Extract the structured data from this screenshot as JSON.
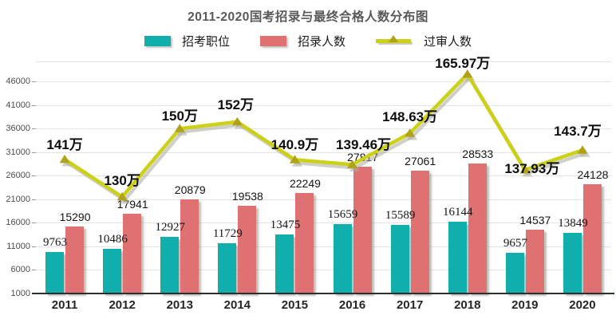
{
  "title": "2011-2020国考招录与最终合格人数分布图",
  "legend": [
    {
      "label": "招考职位",
      "type": "bar",
      "color": "#10afac"
    },
    {
      "label": "招录人数",
      "type": "bar",
      "color": "#df7173"
    },
    {
      "label": "过审人数",
      "type": "line",
      "color": "#ccd117"
    }
  ],
  "chart_data": {
    "type": "bar+line",
    "title": "2011-2020国考招录与最终合格人数分布图",
    "categories": [
      "2011",
      "2012",
      "2013",
      "2014",
      "2015",
      "2016",
      "2017",
      "2018",
      "2019",
      "2020"
    ],
    "series": [
      {
        "name": "招考职位",
        "type": "bar",
        "color": "#10afac",
        "values": [
          9763,
          10486,
          12927,
          11729,
          13475,
          15659,
          15589,
          16144,
          9657,
          13849
        ]
      },
      {
        "name": "招录人数",
        "type": "bar",
        "color": "#df7173",
        "values": [
          15290,
          17941,
          20879,
          19538,
          22249,
          27817,
          27061,
          28533,
          14537,
          24128
        ]
      },
      {
        "name": "过审人数",
        "type": "line",
        "color": "#ccd117",
        "marker_color": "#b1a318",
        "unit": "万",
        "values": [
          141,
          130,
          150,
          152,
          140.9,
          139.46,
          148.63,
          165.97,
          137.93,
          143.7
        ],
        "labels": [
          "141万",
          "130万",
          "150万",
          "152万",
          "140.9万",
          "139.46万",
          "148.63万",
          "165.97万",
          "137.93万",
          "143.7万"
        ]
      }
    ],
    "y_axis": {
      "min": 1000,
      "max": 46000,
      "ticks": [
        46000,
        41000,
        36000,
        31000,
        26000,
        21000,
        16000,
        11000,
        6000,
        1000
      ]
    },
    "line_axis": {
      "visible": false,
      "implied_range": [
        101.7,
        169.7
      ]
    },
    "grid": true,
    "legend_position": "top"
  }
}
